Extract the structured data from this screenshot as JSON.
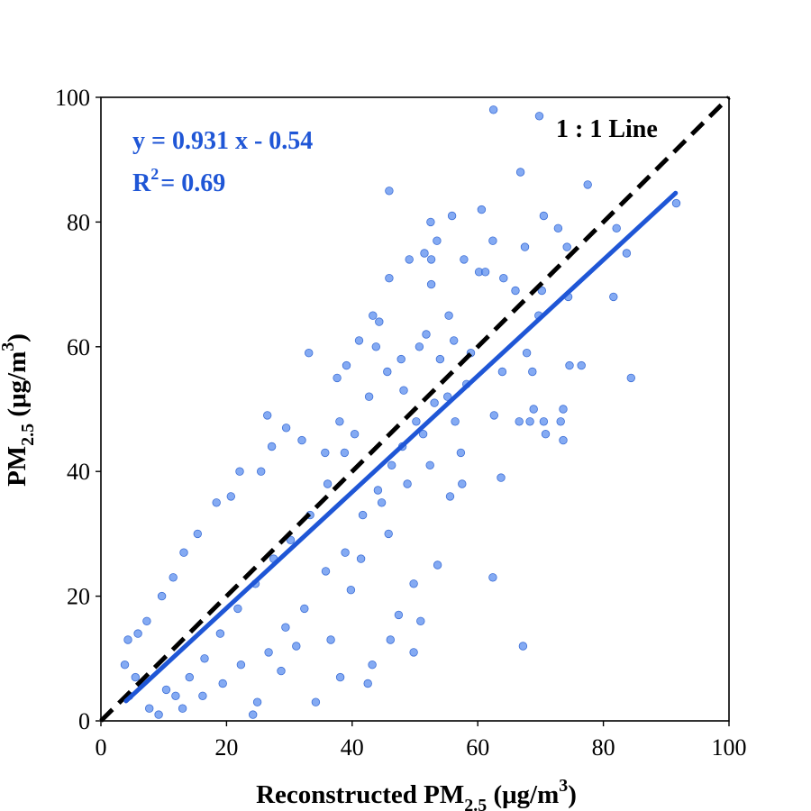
{
  "chart_data": {
    "type": "scatter",
    "xlabel": {
      "prefix": "Reconstructed PM",
      "sub": "2.5",
      "mid": " (μg/m",
      "sup": "3",
      "suffix": ")"
    },
    "ylabel": {
      "prefix": "PM",
      "sub": "2.5",
      "mid": " (μg/m",
      "sup": "3",
      "suffix": ")"
    },
    "xlim": [
      0,
      100
    ],
    "ylim": [
      0,
      100
    ],
    "xticks": [
      "0",
      "20",
      "40",
      "60",
      "80",
      "100"
    ],
    "yticks": [
      "0",
      "20",
      "40",
      "60",
      "80",
      "100"
    ],
    "grid": false,
    "annotations": {
      "equation": "y =  0.931 x - 0.54",
      "r2_prefix": "R",
      "r2_sup": "2",
      "r2_value": "= 0.69",
      "reference": "1 : 1 Line"
    },
    "fit_line": {
      "slope": 0.931,
      "intercept": -0.54,
      "x_range": [
        4,
        91.5
      ]
    },
    "identity_line": {
      "x_range": [
        0,
        100
      ]
    },
    "colors": {
      "points": "#5b8def",
      "point_edge": "#3d6fd6",
      "fit": "#1f56d6",
      "identity": "#000000",
      "annotation": "#1f56d6"
    },
    "series": [
      {
        "points": [
          [
            62.5,
            98
          ],
          [
            69.8,
            97
          ],
          [
            66.8,
            88
          ],
          [
            77.5,
            86
          ],
          [
            45.9,
            85
          ],
          [
            91.6,
            83
          ],
          [
            60.6,
            82
          ],
          [
            55.9,
            81
          ],
          [
            70.5,
            81
          ],
          [
            52.5,
            80
          ],
          [
            62.4,
            77
          ],
          [
            53.5,
            77
          ],
          [
            72.8,
            79
          ],
          [
            82.1,
            79
          ],
          [
            67.5,
            76
          ],
          [
            74.2,
            76
          ],
          [
            51.5,
            75
          ],
          [
            83.7,
            75
          ],
          [
            49.1,
            74
          ],
          [
            52.6,
            74
          ],
          [
            57.8,
            74
          ],
          [
            60.2,
            72
          ],
          [
            61.2,
            72
          ],
          [
            64.1,
            71
          ],
          [
            45.9,
            71
          ],
          [
            66.0,
            69
          ],
          [
            70.2,
            69
          ],
          [
            74.4,
            68
          ],
          [
            81.6,
            68
          ],
          [
            52.6,
            70
          ],
          [
            55.4,
            65
          ],
          [
            69.7,
            65
          ],
          [
            43.3,
            65
          ],
          [
            51.8,
            62
          ],
          [
            44.3,
            64
          ],
          [
            56.2,
            61
          ],
          [
            58.9,
            59
          ],
          [
            63.9,
            56
          ],
          [
            67.8,
            59
          ],
          [
            68.7,
            56
          ],
          [
            74.6,
            57
          ],
          [
            76.5,
            57
          ],
          [
            84.4,
            55
          ],
          [
            62.6,
            49
          ],
          [
            66.6,
            48
          ],
          [
            68.3,
            48
          ],
          [
            68.9,
            50
          ],
          [
            70.5,
            48
          ],
          [
            73.6,
            50
          ],
          [
            73.2,
            48
          ],
          [
            70.8,
            46
          ],
          [
            73.6,
            45
          ],
          [
            57.3,
            43
          ],
          [
            57.5,
            38
          ],
          [
            63.7,
            39
          ],
          [
            55.6,
            36
          ],
          [
            53.6,
            25
          ],
          [
            49.8,
            22
          ],
          [
            62.4,
            23
          ],
          [
            67.2,
            12
          ],
          [
            47.4,
            17
          ],
          [
            50.9,
            16
          ],
          [
            49.8,
            11
          ],
          [
            46.1,
            13
          ],
          [
            42.5,
            6
          ],
          [
            43.2,
            9
          ],
          [
            38.1,
            7
          ],
          [
            34.2,
            3
          ],
          [
            33.1,
            59
          ],
          [
            37.6,
            55
          ],
          [
            39.1,
            57
          ],
          [
            41.1,
            61
          ],
          [
            43.8,
            60
          ],
          [
            45.6,
            56
          ],
          [
            47.8,
            58
          ],
          [
            48.2,
            53
          ],
          [
            50.7,
            60
          ],
          [
            54.0,
            58
          ],
          [
            55.2,
            52
          ],
          [
            58.2,
            54
          ],
          [
            51.3,
            46
          ],
          [
            52.4,
            41
          ],
          [
            48.8,
            38
          ],
          [
            44.7,
            35
          ],
          [
            45.8,
            30
          ],
          [
            41.4,
            26
          ],
          [
            39.8,
            21
          ],
          [
            36.6,
            13
          ],
          [
            31.1,
            12
          ],
          [
            28.7,
            8
          ],
          [
            24.2,
            1
          ],
          [
            24.9,
            3
          ],
          [
            26.5,
            49
          ],
          [
            29.5,
            47
          ],
          [
            27.2,
            44
          ],
          [
            32.0,
            45
          ],
          [
            35.7,
            43
          ],
          [
            38.0,
            48
          ],
          [
            40.4,
            46
          ],
          [
            25.5,
            40
          ],
          [
            22.1,
            40
          ],
          [
            20.7,
            36
          ],
          [
            18.4,
            35
          ],
          [
            15.4,
            30
          ],
          [
            13.2,
            27
          ],
          [
            11.5,
            23
          ],
          [
            9.7,
            20
          ],
          [
            7.3,
            16
          ],
          [
            5.9,
            14
          ],
          [
            4.3,
            13
          ],
          [
            3.8,
            9
          ],
          [
            4.5,
            4
          ],
          [
            5.5,
            7
          ],
          [
            7.7,
            2
          ],
          [
            10.4,
            5
          ],
          [
            13.0,
            2
          ],
          [
            16.2,
            4
          ],
          [
            19.4,
            6
          ],
          [
            22.3,
            9
          ],
          [
            26.7,
            11
          ],
          [
            29.4,
            15
          ],
          [
            32.4,
            18
          ],
          [
            35.8,
            24
          ],
          [
            38.9,
            27
          ],
          [
            41.7,
            33
          ],
          [
            44.1,
            37
          ],
          [
            46.3,
            41
          ],
          [
            48.0,
            44
          ],
          [
            50.2,
            48
          ],
          [
            53.1,
            51
          ],
          [
            56.4,
            48
          ],
          [
            42.7,
            52
          ],
          [
            38.8,
            43
          ],
          [
            36.1,
            38
          ],
          [
            33.3,
            33
          ],
          [
            30.2,
            29
          ],
          [
            27.5,
            26
          ],
          [
            24.6,
            22
          ],
          [
            21.8,
            18
          ],
          [
            19.0,
            14
          ],
          [
            16.5,
            10
          ],
          [
            14.1,
            7
          ],
          [
            11.9,
            4
          ],
          [
            9.2,
            1
          ]
        ]
      }
    ]
  }
}
